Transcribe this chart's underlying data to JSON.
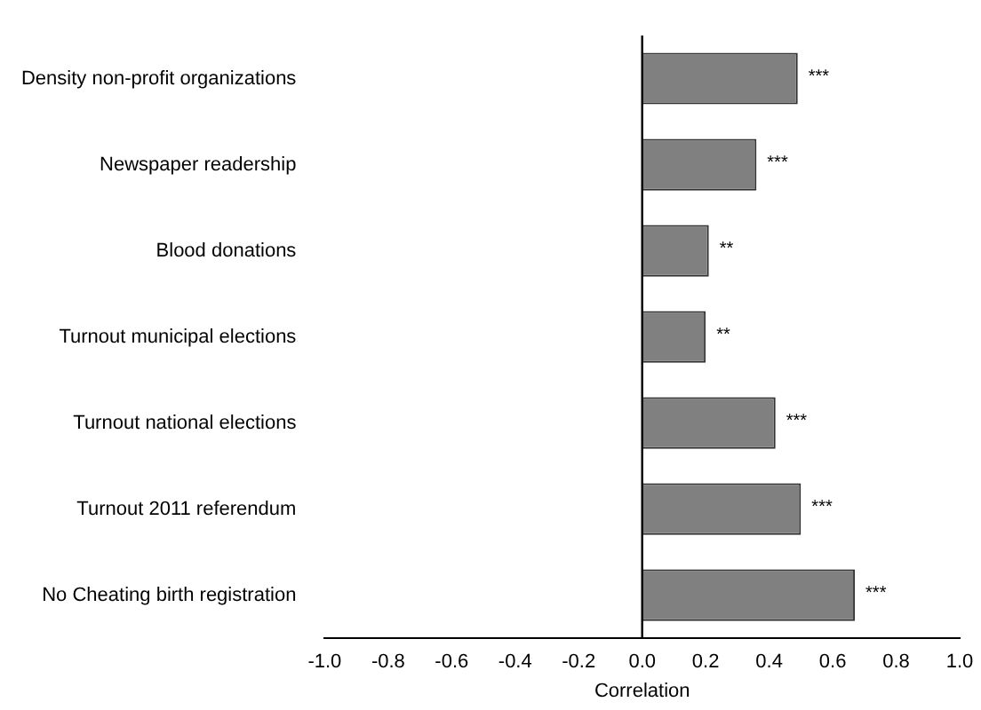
{
  "chart_data": {
    "type": "bar",
    "orientation": "horizontal",
    "xlabel": "Correlation",
    "categories": [
      "Density non-profit organizations",
      "Newspaper readership",
      "Blood donations",
      "Turnout municipal elections",
      "Turnout national elections",
      "Turnout 2011 referendum",
      "No Cheating birth registration"
    ],
    "values": [
      0.49,
      0.36,
      0.21,
      0.2,
      0.42,
      0.5,
      0.67
    ],
    "value_labels": [
      "***",
      "***",
      "**",
      "**",
      "***",
      "***",
      "***"
    ],
    "color": "#808080",
    "xlim": [
      -1,
      1
    ],
    "xticks": [
      {
        "value": -1,
        "label": "-1.0"
      },
      -0.8,
      -0.6,
      -0.4,
      -0.2,
      {
        "value": 0,
        "label": "0.0"
      },
      0.2,
      0.4,
      0.6,
      0.8,
      {
        "value": 1,
        "label": "1.0"
      }
    ],
    "ref_lines": [
      {
        "axis": "x",
        "value": 0,
        "color": "#000000"
      }
    ],
    "grid": false,
    "legend": false
  }
}
